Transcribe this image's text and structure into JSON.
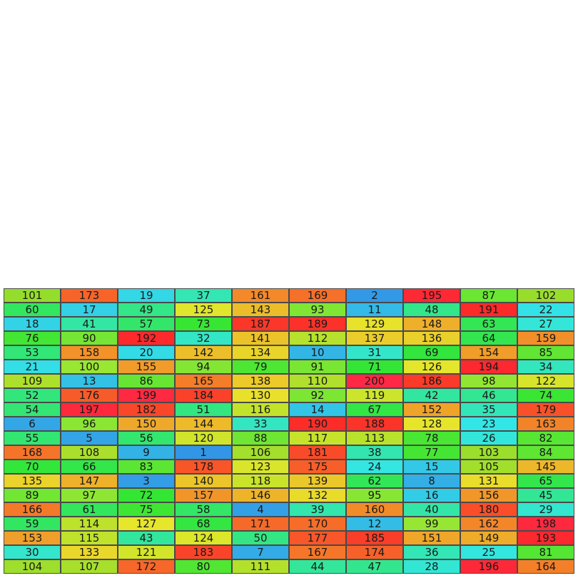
{
  "grid": {
    "columns": 10,
    "max_value": 200,
    "rows": [
      [
        101,
        173,
        19,
        37,
        161,
        169,
        2,
        195,
        87,
        102
      ],
      [
        60,
        17,
        49,
        125,
        143,
        93,
        11,
        48,
        191,
        22
      ],
      [
        18,
        41,
        57,
        73,
        187,
        189,
        129,
        148,
        63,
        27
      ],
      [
        76,
        90,
        192,
        32,
        141,
        112,
        137,
        136,
        64,
        159
      ],
      [
        53,
        158,
        20,
        142,
        134,
        10,
        31,
        69,
        154,
        85
      ],
      [
        21,
        100,
        155,
        94,
        79,
        91,
        71,
        126,
        194,
        34
      ],
      [
        109,
        13,
        86,
        165,
        138,
        110,
        200,
        186,
        98,
        122
      ],
      [
        52,
        176,
        199,
        184,
        130,
        92,
        119,
        42,
        46,
        74
      ],
      [
        54,
        197,
        182,
        51,
        116,
        14,
        67,
        152,
        35,
        179
      ],
      [
        6,
        96,
        150,
        144,
        33,
        190,
        188,
        128,
        23,
        163
      ],
      [
        55,
        5,
        56,
        120,
        88,
        117,
        113,
        78,
        26,
        82
      ],
      [
        168,
        108,
        9,
        1,
        106,
        181,
        38,
        77,
        103,
        84
      ],
      [
        70,
        66,
        83,
        178,
        123,
        175,
        24,
        15,
        105,
        145
      ],
      [
        135,
        147,
        3,
        140,
        118,
        139,
        62,
        8,
        131,
        65
      ],
      [
        89,
        97,
        72,
        157,
        146,
        132,
        95,
        16,
        156,
        45
      ],
      [
        166,
        61,
        75,
        58,
        4,
        39,
        160,
        40,
        180,
        29
      ],
      [
        59,
        114,
        127,
        68,
        171,
        170,
        12,
        99,
        162,
        198
      ],
      [
        153,
        115,
        43,
        124,
        50,
        177,
        185,
        151,
        149,
        193
      ],
      [
        30,
        133,
        121,
        183,
        7,
        167,
        174,
        36,
        25,
        81
      ],
      [
        104,
        107,
        172,
        80,
        111,
        44,
        47,
        28,
        196,
        164
      ]
    ]
  }
}
